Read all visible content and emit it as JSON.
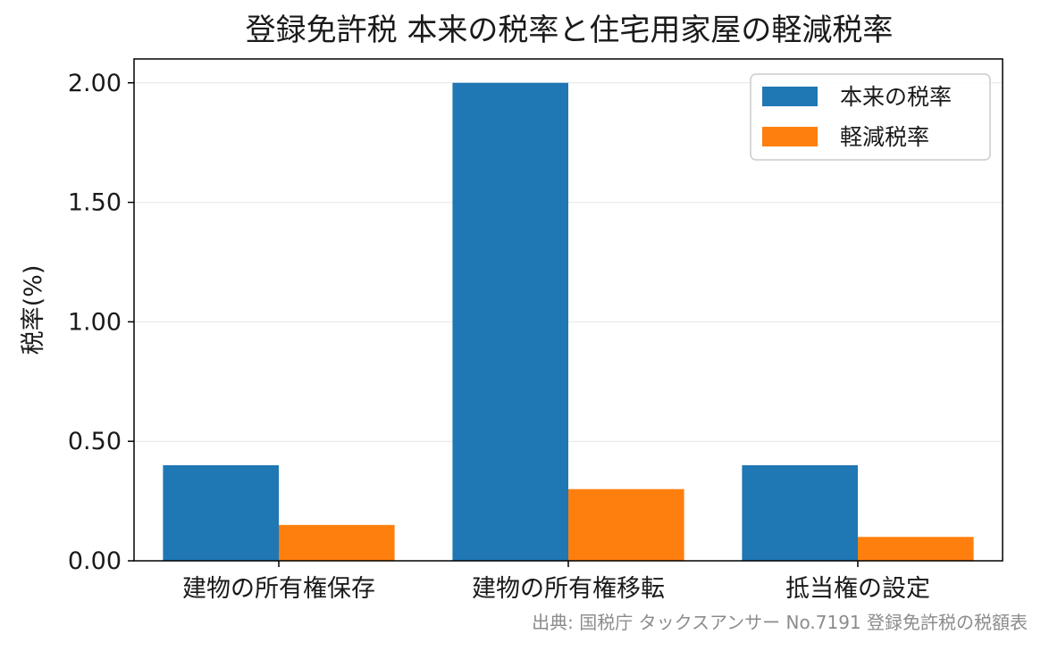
{
  "chart_data": {
    "type": "bar",
    "title": "登録免許税 本来の税率と住宅用家屋の軽減税率",
    "xlabel": "",
    "ylabel": "税率(%)",
    "categories": [
      "建物の所有権保存",
      "建物の所有権移転",
      "抵当権の設定"
    ],
    "series": [
      {
        "name": "本来の税率",
        "values": [
          0.4,
          2.0,
          0.4
        ],
        "color": "#1f77b4"
      },
      {
        "name": "軽減税率",
        "values": [
          0.15,
          0.3,
          0.1
        ],
        "color": "#ff7f0e"
      }
    ],
    "ylim": [
      0,
      2.1
    ],
    "yticks": [
      "0.00",
      "0.50",
      "1.00",
      "1.50",
      "2.00"
    ],
    "grid": "horizontal",
    "legend": "top-right",
    "source_note": "出典: 国税庁 タックスアンサー No.7191 登録免許税の税額表"
  }
}
